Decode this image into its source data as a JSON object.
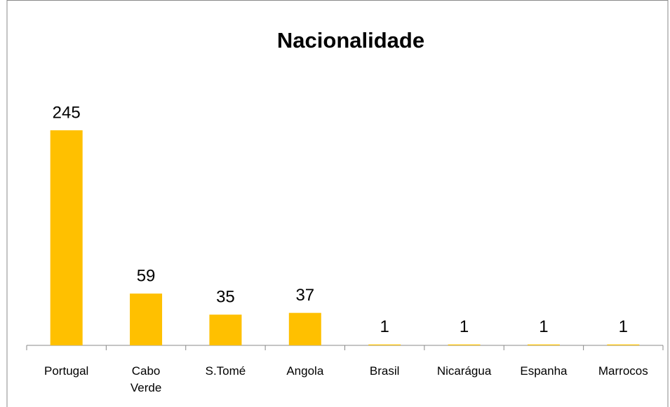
{
  "chart_data": {
    "type": "bar",
    "title": "Nacionalidade",
    "categories": [
      "Portugal",
      "Cabo Verde",
      "S.Tomé",
      "Angola",
      "Brasil",
      "Nicarágua",
      "Espanha",
      "Marrocos"
    ],
    "values": [
      245,
      59,
      35,
      37,
      1,
      1,
      1,
      1
    ],
    "color": "#ffc000"
  }
}
